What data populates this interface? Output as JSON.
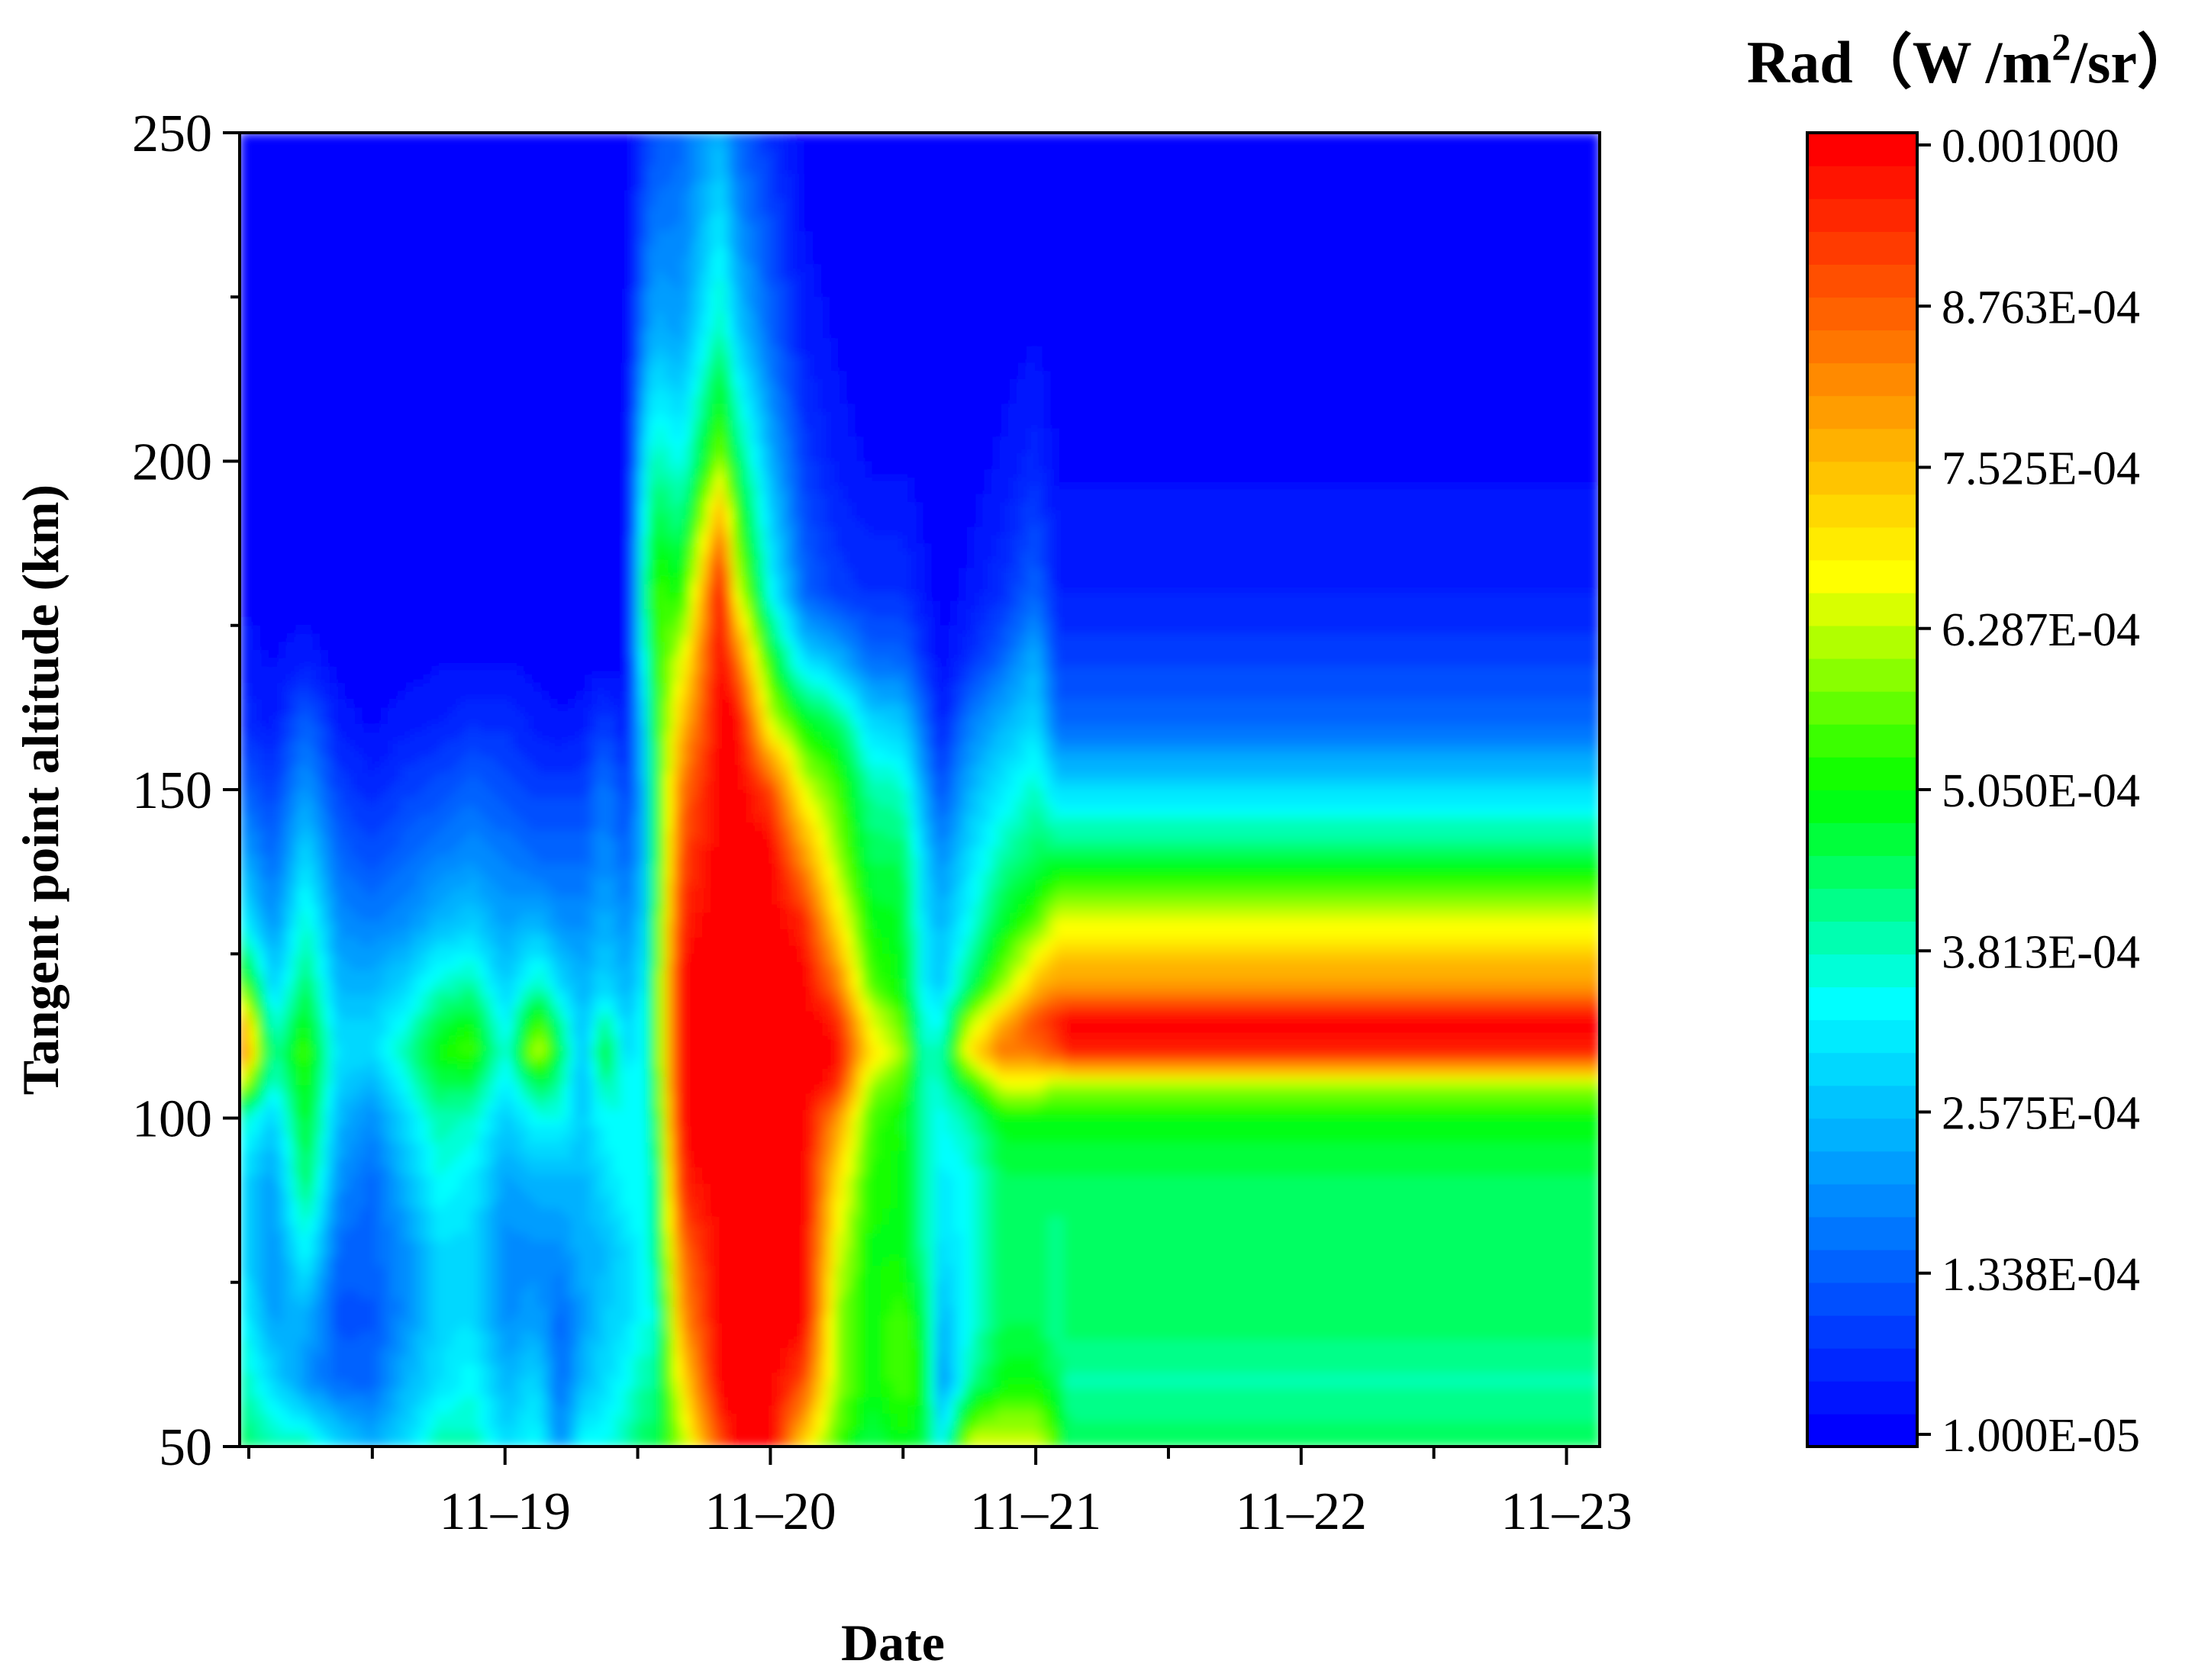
{
  "chart_data": {
    "type": "heatmap",
    "title": "",
    "xlabel": "Date",
    "ylabel": "Tangent point altitude (km)",
    "x_ticks": [
      "11–19",
      "11–20",
      "11–21",
      "11–22",
      "11–23"
    ],
    "xlim": [
      "11-18 00:00",
      "11-23 03:00"
    ],
    "ylim": [
      50,
      250
    ],
    "y_ticks": [
      50,
      100,
      150,
      200,
      250
    ],
    "colorbar": {
      "title_prefix": "Rad（W /m",
      "title_sup": "2",
      "title_suffix": "/sr）",
      "min": 1e-05,
      "max": 0.001,
      "tick_labels": [
        "1.000E-05",
        "1.338E-04",
        "2.575E-04",
        "3.813E-04",
        "5.050E-04",
        "6.287E-04",
        "7.525E-04",
        "8.763E-04",
        "0.001000"
      ],
      "colormap": [
        "#0000ff",
        "#0080ff",
        "#00ffff",
        "#00ff00",
        "#ffff00",
        "#ff8000",
        "#ff0000"
      ],
      "levels": 40
    },
    "altitudes_km": [
      50,
      60,
      70,
      80,
      90,
      100,
      105,
      110,
      115,
      120,
      130,
      140,
      150,
      160,
      170,
      180,
      200,
      220,
      250
    ],
    "profiles": [
      {
        "x": "11-18 00:00",
        "values_e4": [
          4.5,
          4.0,
          3.5,
          3.0,
          3.0,
          4.0,
          6.5,
          9.0,
          8.0,
          6.0,
          3.5,
          2.5,
          1.5,
          0.8,
          0.5,
          0.3,
          0.2,
          0.1,
          0.1
        ]
      },
      {
        "x": "11-18 03:00",
        "values_e4": [
          4.0,
          3.0,
          2.2,
          2.0,
          2.2,
          2.8,
          3.5,
          4.0,
          3.5,
          2.8,
          2.0,
          1.5,
          1.0,
          0.5,
          0.3,
          0.2,
          0.1,
          0.1,
          0.1
        ]
      },
      {
        "x": "11-18 06:00",
        "values_e4": [
          4.0,
          2.0,
          2.5,
          3.5,
          4.5,
          5.0,
          5.2,
          5.5,
          5.0,
          4.5,
          3.8,
          3.0,
          2.2,
          1.5,
          0.5,
          0.2,
          0.1,
          0.1,
          0.1
        ]
      },
      {
        "x": "11-18 09:00",
        "values_e4": [
          3.0,
          1.5,
          1.2,
          1.5,
          2.0,
          2.5,
          2.8,
          3.0,
          2.8,
          2.5,
          2.0,
          1.5,
          1.0,
          0.5,
          0.2,
          0.1,
          0.1,
          0.1,
          0.1
        ]
      },
      {
        "x": "11-18 12:00",
        "values_e4": [
          2.5,
          1.5,
          1.3,
          1.5,
          1.5,
          2.0,
          2.5,
          3.0,
          2.8,
          2.5,
          1.8,
          1.2,
          0.7,
          0.3,
          0.1,
          0.1,
          0.1,
          0.1,
          0.1
        ]
      },
      {
        "x": "11-18 15:00",
        "values_e4": [
          3.0,
          2.5,
          2.0,
          2.0,
          2.5,
          3.0,
          3.5,
          4.0,
          3.5,
          3.0,
          2.0,
          1.5,
          1.0,
          0.5,
          0.2,
          0.1,
          0.1,
          0.1,
          0.1
        ]
      },
      {
        "x": "11-18 18:00",
        "values_e4": [
          4.0,
          3.0,
          3.0,
          3.0,
          3.5,
          4.0,
          4.5,
          5.0,
          4.5,
          3.8,
          2.5,
          1.8,
          1.2,
          0.6,
          0.3,
          0.1,
          0.1,
          0.1,
          0.1
        ]
      },
      {
        "x": "11-18 21:00",
        "values_e4": [
          4.0,
          3.5,
          3.0,
          3.0,
          3.2,
          3.8,
          4.5,
          5.5,
          5.0,
          4.0,
          2.8,
          2.0,
          1.5,
          0.8,
          0.3,
          0.2,
          0.1,
          0.1,
          0.1
        ]
      },
      {
        "x": "11-19 00:00",
        "values_e4": [
          3.0,
          2.5,
          2.0,
          2.0,
          2.2,
          2.8,
          3.2,
          3.5,
          3.2,
          2.8,
          2.2,
          1.8,
          1.2,
          0.8,
          0.3,
          0.2,
          0.1,
          0.1,
          0.1
        ]
      },
      {
        "x": "11-19 03:00",
        "values_e4": [
          3.5,
          3.0,
          2.2,
          2.0,
          2.5,
          3.5,
          4.5,
          6.5,
          5.5,
          4.0,
          2.5,
          1.5,
          1.0,
          0.5,
          0.2,
          0.1,
          0.1,
          0.1,
          0.1
        ]
      },
      {
        "x": "11-19 05:00",
        "values_e4": [
          2.0,
          1.5,
          1.5,
          2.0,
          2.5,
          3.5,
          4.0,
          4.5,
          4.0,
          3.0,
          2.0,
          1.5,
          1.0,
          0.4,
          0.1,
          0.1,
          0.1,
          0.1,
          0.1
        ]
      },
      {
        "x": "11-19 07:00",
        "values_e4": [
          3.5,
          2.5,
          2.2,
          2.5,
          2.5,
          2.8,
          2.5,
          2.5,
          2.5,
          2.5,
          2.0,
          1.5,
          1.0,
          0.5,
          0.2,
          0.1,
          0.1,
          0.1,
          0.1
        ]
      },
      {
        "x": "11-19 09:00",
        "values_e4": [
          3.5,
          3.0,
          2.8,
          2.5,
          3.0,
          3.5,
          4.0,
          5.0,
          4.0,
          3.0,
          2.5,
          2.0,
          1.8,
          1.0,
          0.2,
          0.1,
          0.1,
          0.1,
          0.1
        ]
      },
      {
        "x": "11-19 11:00",
        "values_e4": [
          4.0,
          3.5,
          3.0,
          3.0,
          3.5,
          3.5,
          3.5,
          3.0,
          2.8,
          2.5,
          2.0,
          1.5,
          1.0,
          0.5,
          0.2,
          0.1,
          0.1,
          0.1,
          0.1
        ]
      },
      {
        "x": "11-19 12:30",
        "values_e4": [
          4.5,
          4.0,
          3.5,
          3.5,
          3.5,
          3.5,
          3.5,
          3.5,
          3.5,
          3.2,
          2.8,
          2.5,
          2.5,
          2.8,
          3.5,
          4.0,
          3.0,
          1.8,
          0.8
        ]
      },
      {
        "x": "11-19 13:30",
        "values_e4": [
          4.5,
          4.0,
          3.5,
          4.0,
          4.0,
          4.5,
          4.8,
          5.0,
          5.0,
          5.0,
          4.8,
          4.5,
          4.5,
          4.8,
          5.0,
          5.5,
          4.0,
          2.5,
          1.2
        ]
      },
      {
        "x": "11-19 16:00",
        "values_e4": [
          6.0,
          7.0,
          8.0,
          8.5,
          9.5,
          10,
          10,
          10,
          10,
          10,
          9.5,
          9.0,
          8.5,
          7.5,
          6.5,
          5.0,
          3.5,
          2.2,
          1.5
        ]
      },
      {
        "x": "11-19 19:30",
        "values_e4": [
          9.0,
          10,
          10,
          10,
          10,
          10,
          10,
          10,
          10,
          10,
          10,
          10,
          10,
          10,
          10,
          10,
          6.0,
          4.0,
          2.5
        ]
      },
      {
        "x": "11-19 21:00",
        "values_e4": [
          10,
          10,
          10,
          10,
          10,
          10,
          10,
          10,
          10,
          10,
          10,
          10,
          10,
          10,
          8.5,
          6.5,
          4.5,
          2.8,
          1.5
        ]
      },
      {
        "x": "11-20 00:00",
        "values_e4": [
          10,
          10,
          10,
          10,
          10,
          10,
          10,
          10,
          10,
          10,
          10,
          10,
          9.0,
          6.5,
          5.0,
          3.5,
          2.5,
          1.5,
          0.8
        ]
      },
      {
        "x": "11-20 03:00",
        "values_e4": [
          7.0,
          9.0,
          10,
          10,
          10,
          10,
          10,
          10,
          10,
          10,
          9.5,
          8.0,
          6.5,
          5.0,
          3.0,
          1.5,
          1.0,
          0.5,
          0.2
        ]
      },
      {
        "x": "11-20 06:00",
        "values_e4": [
          5.5,
          6.0,
          6.0,
          6.5,
          7.0,
          8.0,
          9.5,
          10,
          9.5,
          8.5,
          7.0,
          6.0,
          5.5,
          4.5,
          2.5,
          1.0,
          0.5,
          0.3,
          0.1
        ]
      },
      {
        "x": "11-20 09:00",
        "values_e4": [
          4.5,
          5.0,
          5.0,
          5.0,
          5.2,
          5.5,
          6.0,
          7.0,
          6.5,
          5.5,
          5.0,
          4.5,
          4.0,
          3.0,
          1.5,
          0.8,
          0.3,
          0.1,
          0.1
        ]
      },
      {
        "x": "11-20 12:00",
        "values_e4": [
          5.0,
          5.5,
          5.5,
          5.0,
          5.0,
          5.0,
          5.5,
          6.0,
          5.5,
          5.0,
          4.8,
          4.5,
          3.8,
          2.8,
          1.5,
          0.8,
          0.3,
          0.1,
          0.1
        ]
      },
      {
        "x": "11-20 14:00",
        "values_e4": [
          4.5,
          5.0,
          4.5,
          4.0,
          4.0,
          3.8,
          3.8,
          3.8,
          3.5,
          3.2,
          3.0,
          2.8,
          2.2,
          1.5,
          0.8,
          0.4,
          0.2,
          0.1,
          0.1
        ]
      },
      {
        "x": "11-20 15:30",
        "values_e4": [
          3.5,
          2.0,
          2.5,
          3.0,
          3.2,
          3.5,
          3.8,
          4.0,
          3.5,
          2.8,
          2.5,
          2.0,
          1.2,
          0.6,
          0.3,
          0.2,
          0.1,
          0.1,
          0.1
        ]
      },
      {
        "x": "11-20 18:00",
        "values_e4": [
          6.5,
          4.0,
          3.5,
          3.5,
          3.5,
          4.0,
          5.0,
          7.0,
          6.0,
          4.5,
          3.5,
          3.0,
          2.5,
          1.8,
          0.8,
          0.4,
          0.2,
          0.1,
          0.1
        ]
      },
      {
        "x": "11-20 21:00",
        "values_e4": [
          6.5,
          5.0,
          4.5,
          4.5,
          4.5,
          5.0,
          6.5,
          8.5,
          7.5,
          6.0,
          4.8,
          4.0,
          3.2,
          2.5,
          1.5,
          0.8,
          0.4,
          0.2,
          0.1
        ]
      },
      {
        "x": "11-21 00:00",
        "values_e4": [
          6.5,
          5.0,
          4.5,
          4.5,
          4.5,
          5.0,
          6.5,
          8.5,
          9.0,
          7.5,
          5.5,
          4.5,
          3.8,
          3.0,
          2.5,
          1.5,
          0.7,
          0.3,
          0.1
        ]
      },
      {
        "x": "11-21 02:00",
        "values_e4": [
          5.5,
          4.5,
          4.0,
          4.0,
          4.5,
          5.0,
          6.0,
          9.0,
          9.5,
          8.0,
          6.5,
          4.5,
          3.0,
          1.5,
          1.0,
          0.6,
          0.3,
          0.1,
          0.1
        ]
      },
      {
        "x": "11-21 03:00",
        "values_e4": [
          4.5,
          4.0,
          4.5,
          4.5,
          4.5,
          5.0,
          6.0,
          9.5,
          10,
          8.0,
          6.5,
          4.5,
          3.0,
          1.5,
          1.0,
          0.6,
          0.3,
          0.1,
          0.1
        ]
      }
    ]
  }
}
